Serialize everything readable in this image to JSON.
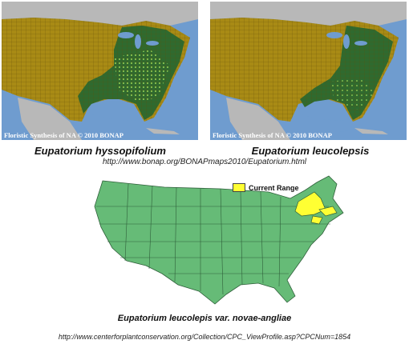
{
  "maps": [
    {
      "credit": "Floristic Synthesis of NA © 2010 BONAP",
      "species": "Eupatorium hyssopifolium"
    },
    {
      "credit": "Floristic Synthesis of NA © 2010 BONAP",
      "species": "Eupatorium leucolepsis"
    }
  ],
  "source_url_1": "http://www.bonap.org/BONAPmaps2010/Eupatorium.html",
  "range_map": {
    "legend_label": "Current Range",
    "range_color": "#ffff33",
    "base_color": "#66bb77",
    "species": "Eupatorium leucolepis var. novae-angliae"
  },
  "source_url_2": "http://www.centerforplantconservation.org/Collection/CPC_ViewProfile.asp?CPCNum=1854",
  "colors": {
    "absent": "#a88a15",
    "present": "#2f6a2f",
    "rare": "#aadc55",
    "water": "#6f9ccf",
    "land_other": "#c0c0c0"
  }
}
